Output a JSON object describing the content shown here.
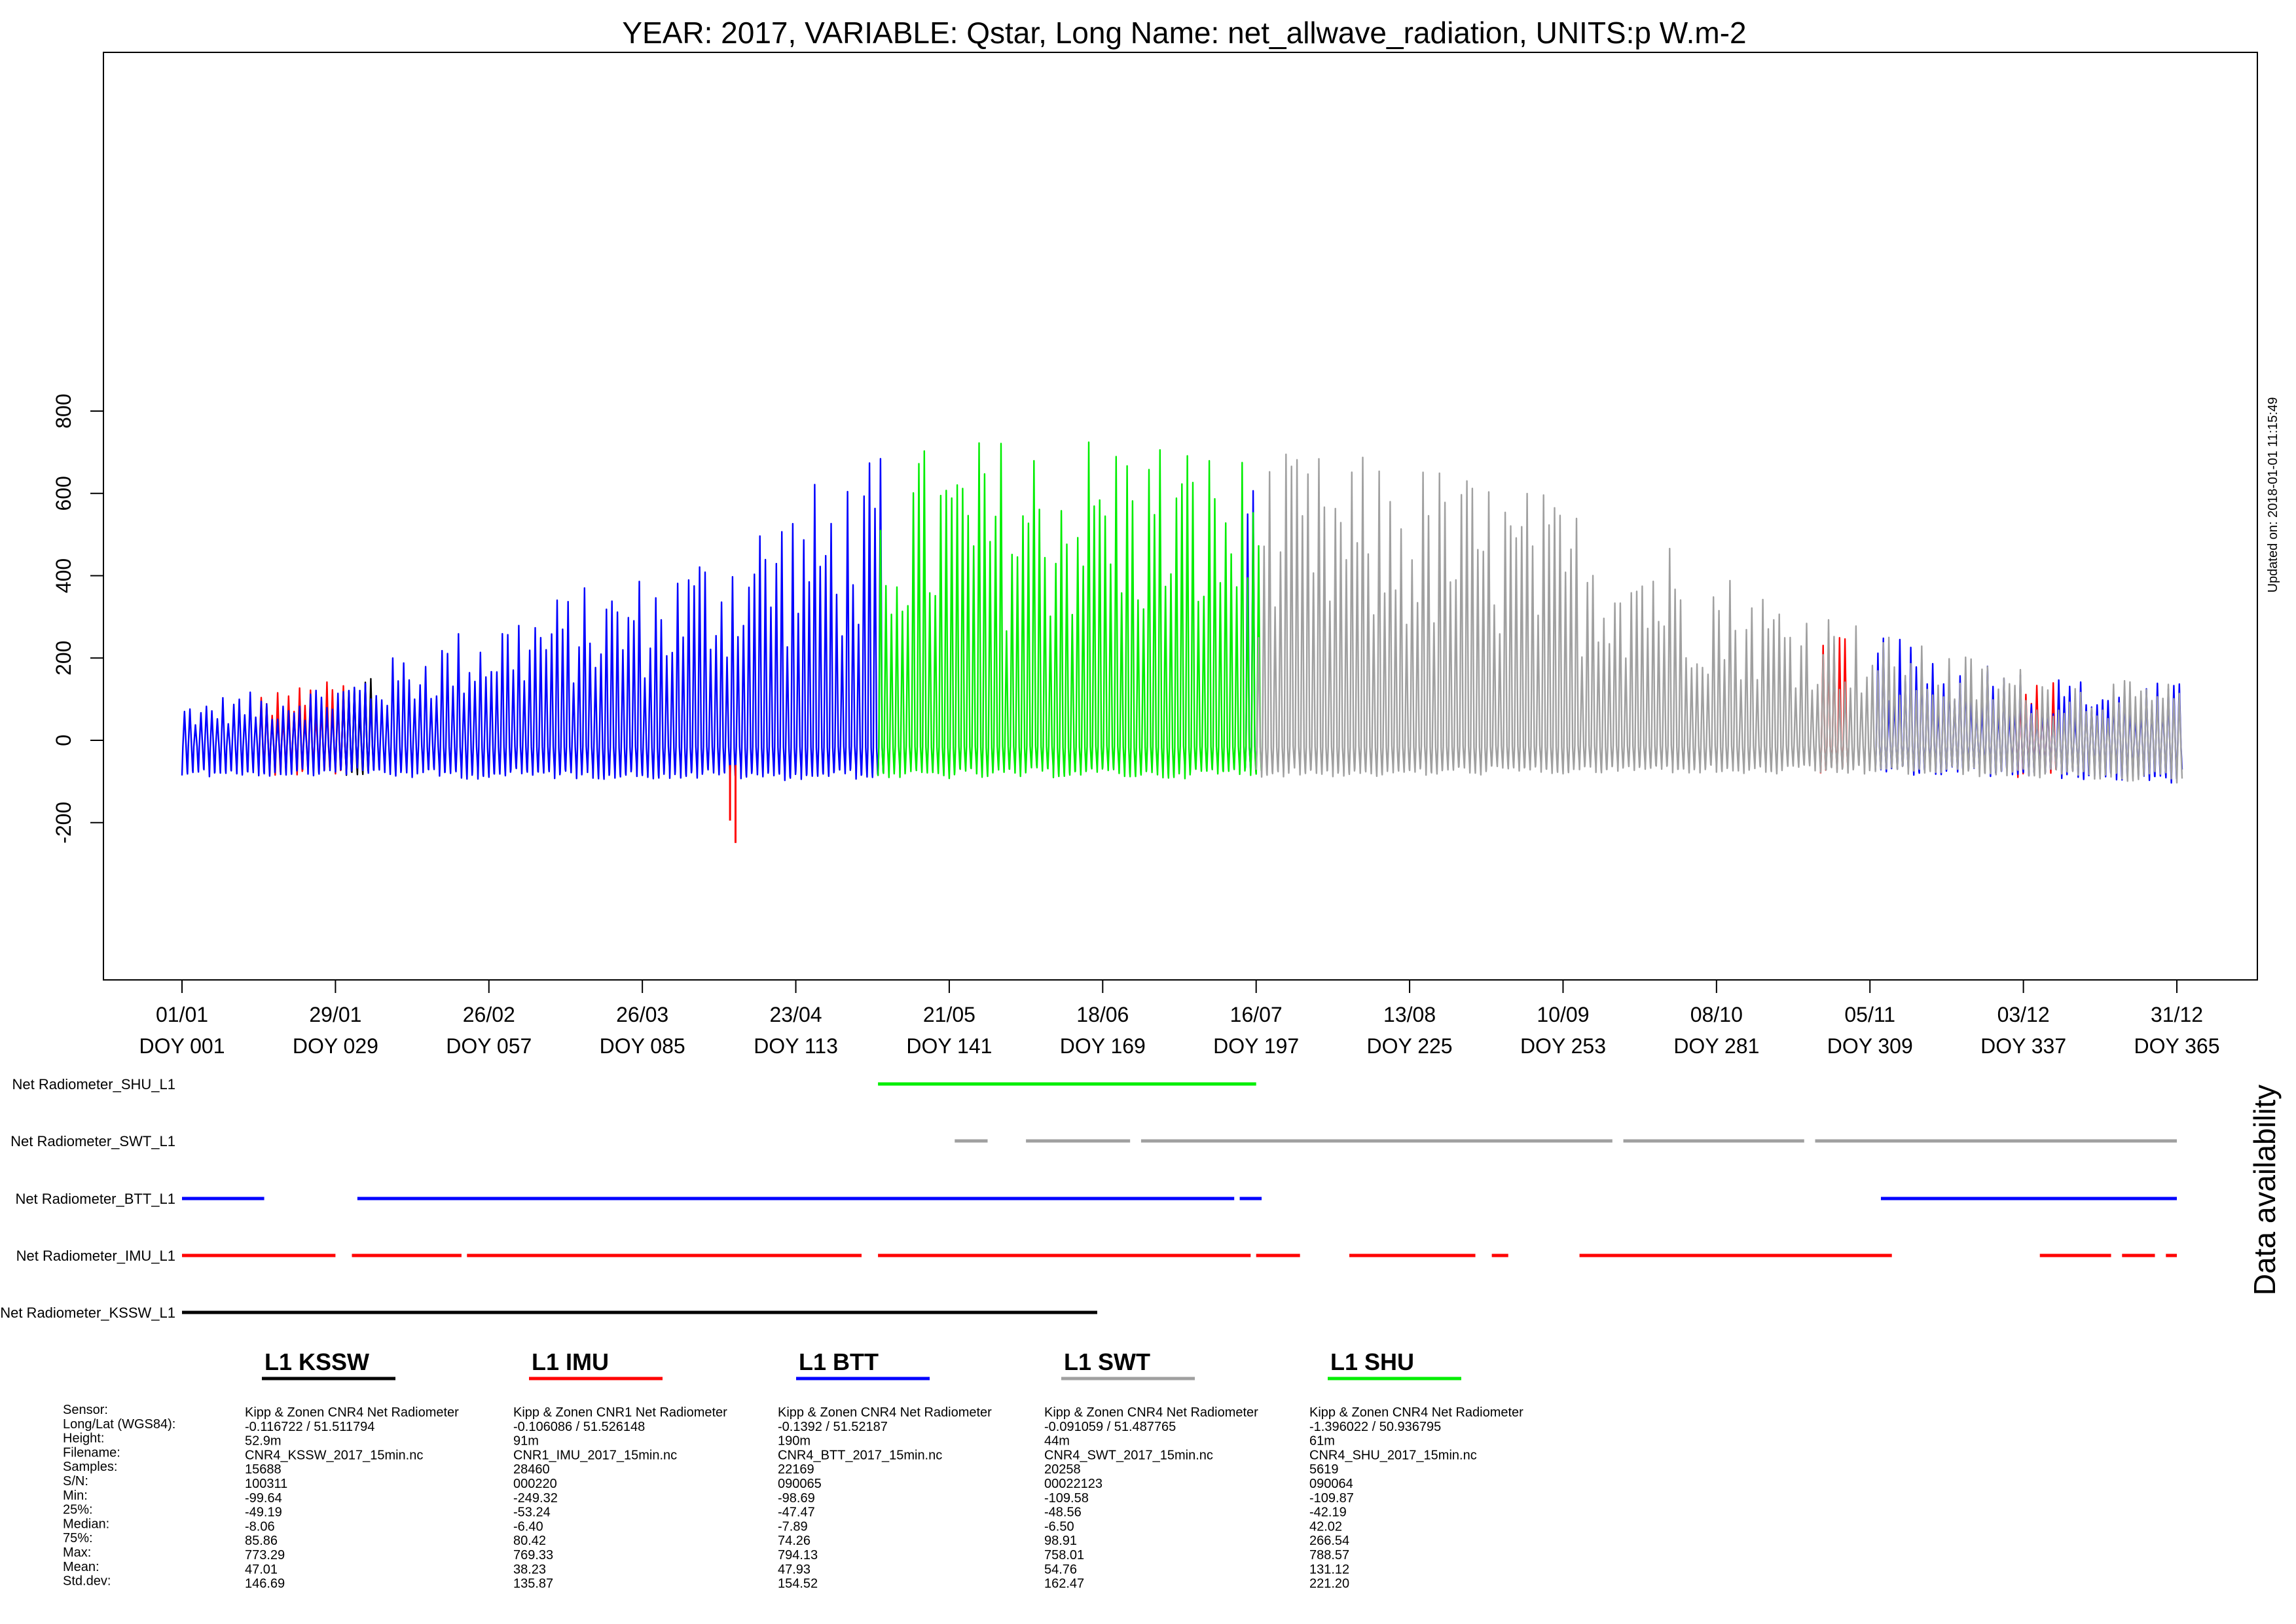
{
  "title": "YEAR: 2017, VARIABLE: Qstar, Long Name: net_allwave_radiation, UNITS:p W.m-2",
  "updated": "Updated on: 2018-01-01 11:15:49",
  "availability_label": "Data availability",
  "colors": {
    "KSSW": "#000000",
    "IMU": "#ff0000",
    "BTT": "#0000ff",
    "SWT": "#a0a0a0",
    "SHU": "#00ee00"
  },
  "chart_data": {
    "type": "line",
    "title": "YEAR: 2017, VARIABLE: Qstar, Long Name: net_allwave_radiation, UNITS:p W.m-2",
    "xlabel": "",
    "ylabel": "",
    "xlim_doy": [
      1,
      365
    ],
    "ylim": [
      -290,
      840
    ],
    "yticks": [
      "-200",
      "0",
      "200",
      "400",
      "600",
      "800"
    ],
    "xticks": [
      {
        "date": "01/01",
        "doy": "DOY 001"
      },
      {
        "date": "29/01",
        "doy": "DOY 029"
      },
      {
        "date": "26/02",
        "doy": "DOY 057"
      },
      {
        "date": "26/03",
        "doy": "DOY 085"
      },
      {
        "date": "23/04",
        "doy": "DOY 113"
      },
      {
        "date": "21/05",
        "doy": "DOY 141"
      },
      {
        "date": "18/06",
        "doy": "DOY 169"
      },
      {
        "date": "16/07",
        "doy": "DOY 197"
      },
      {
        "date": "13/08",
        "doy": "DOY 225"
      },
      {
        "date": "10/09",
        "doy": "DOY 253"
      },
      {
        "date": "08/10",
        "doy": "DOY 281"
      },
      {
        "date": "05/11",
        "doy": "DOY 309"
      },
      {
        "date": "03/12",
        "doy": "DOY 337"
      },
      {
        "date": "31/12",
        "doy": "DOY 365"
      }
    ],
    "daily_peak_envelope": {
      "doy": [
        1,
        15,
        30,
        45,
        60,
        75,
        90,
        105,
        120,
        135,
        150,
        165,
        180,
        195,
        210,
        225,
        240,
        255,
        270,
        285,
        300,
        315,
        330,
        345,
        365
      ],
      "peak": [
        100,
        120,
        150,
        240,
        320,
        380,
        430,
        560,
        660,
        720,
        750,
        770,
        760,
        700,
        700,
        690,
        650,
        580,
        520,
        400,
        330,
        240,
        200,
        150,
        140
      ],
      "night": [
        -85,
        -85,
        -80,
        -90,
        -90,
        -90,
        -90,
        -95,
        -90,
        -90,
        -90,
        -85,
        -90,
        -85,
        -85,
        -85,
        -80,
        -80,
        -75,
        -80,
        -80,
        -80,
        -85,
        -90,
        -100
      ]
    },
    "series_order": [
      "KSSW",
      "IMU",
      "BTT",
      "SHU",
      "SWT"
    ],
    "series_spans_doy": {
      "KSSW": [
        [
          30,
          35
        ]
      ],
      "IMU": [
        [
          15,
          30
        ],
        [
          300,
          304
        ],
        [
          335,
          342
        ]
      ],
      "BTT": [
        [
          1,
          128
        ],
        [
          195,
          196
        ],
        [
          310,
          365
        ]
      ],
      "SHU": [
        [
          128,
          197
        ]
      ],
      "SWT": [
        [
          197,
          365
        ]
      ]
    },
    "extremes": [
      {
        "series": "IMU",
        "doy": 102,
        "value": -249.32
      },
      {
        "series": "IMU",
        "doy": 101,
        "value": -195
      }
    ]
  },
  "availability": [
    {
      "label": "Net Radiometer_SHU_L1",
      "key": "SHU",
      "segments": [
        [
          128,
          197
        ]
      ]
    },
    {
      "label": "Net Radiometer_SWT_L1",
      "key": "SWT",
      "segments": [
        [
          142,
          148
        ],
        [
          155,
          174
        ],
        [
          176,
          262
        ],
        [
          264,
          297
        ],
        [
          299,
          365
        ]
      ]
    },
    {
      "label": "Net Radiometer_BTT_L1",
      "key": "BTT",
      "segments": [
        [
          1,
          16
        ],
        [
          33,
          193
        ],
        [
          194,
          198
        ],
        [
          311,
          365
        ]
      ]
    },
    {
      "label": "Net Radiometer_IMU_L1",
      "key": "IMU",
      "segments": [
        [
          1,
          29
        ],
        [
          32,
          52
        ],
        [
          53,
          125
        ],
        [
          128,
          196
        ],
        [
          197,
          205
        ],
        [
          214,
          237
        ],
        [
          240,
          243
        ],
        [
          256,
          313
        ],
        [
          340,
          353
        ],
        [
          355,
          361
        ],
        [
          363,
          365
        ]
      ]
    },
    {
      "label": "Net Radiometer_KSSW_L1",
      "key": "KSSW",
      "segments": [
        [
          1,
          168
        ]
      ]
    }
  ],
  "legend": [
    {
      "name": "L1 KSSW",
      "key": "KSSW"
    },
    {
      "name": "L1 IMU",
      "key": "IMU"
    },
    {
      "name": "L1 BTT",
      "key": "BTT"
    },
    {
      "name": "L1 SWT",
      "key": "SWT"
    },
    {
      "name": "L1 SHU",
      "key": "SHU"
    }
  ],
  "stats_labels": [
    "Sensor:",
    "Long/Lat (WGS84):",
    "Height:",
    "Filename:",
    "Samples:",
    "S/N:",
    "Min:",
    "25%:",
    "Median:",
    "75%:",
    "Max:",
    "Mean:",
    "Std.dev:"
  ],
  "stats": [
    [
      "Kipp & Zonen CNR4 Net Radiometer",
      "-0.116722 / 51.511794",
      "52.9m",
      "CNR4_KSSW_2017_15min.nc",
      "15688",
      "100311",
      "-99.64",
      "-49.19",
      "-8.06",
      "85.86",
      "773.29",
      "47.01",
      "146.69"
    ],
    [
      "Kipp & Zonen CNR1 Net Radiometer",
      "-0.106086 / 51.526148",
      "91m",
      "CNR1_IMU_2017_15min.nc",
      "28460",
      "000220",
      "-249.32",
      "-53.24",
      "-6.40",
      "80.42",
      "769.33",
      "38.23",
      "135.87"
    ],
    [
      "Kipp & Zonen CNR4 Net Radiometer",
      "-0.1392 / 51.52187",
      "190m",
      "CNR4_BTT_2017_15min.nc",
      "22169",
      "090065",
      "-98.69",
      "-47.47",
      "-7.89",
      "74.26",
      "794.13",
      "47.93",
      "154.52"
    ],
    [
      "Kipp & Zonen CNR4 Net Radiometer",
      "-0.091059 / 51.487765",
      "44m",
      "CNR4_SWT_2017_15min.nc",
      "20258",
      "00022123",
      "-109.58",
      "-48.56",
      "-6.50",
      "98.91",
      "758.01",
      "54.76",
      "162.47"
    ],
    [
      "Kipp & Zonen CNR4 Net Radiometer",
      "-1.396022 / 50.936795",
      "61m",
      "CNR4_SHU_2017_15min.nc",
      "5619",
      "090064",
      "-109.87",
      "-42.19",
      "42.02",
      "266.54",
      "788.57",
      "131.12",
      "221.20"
    ]
  ]
}
